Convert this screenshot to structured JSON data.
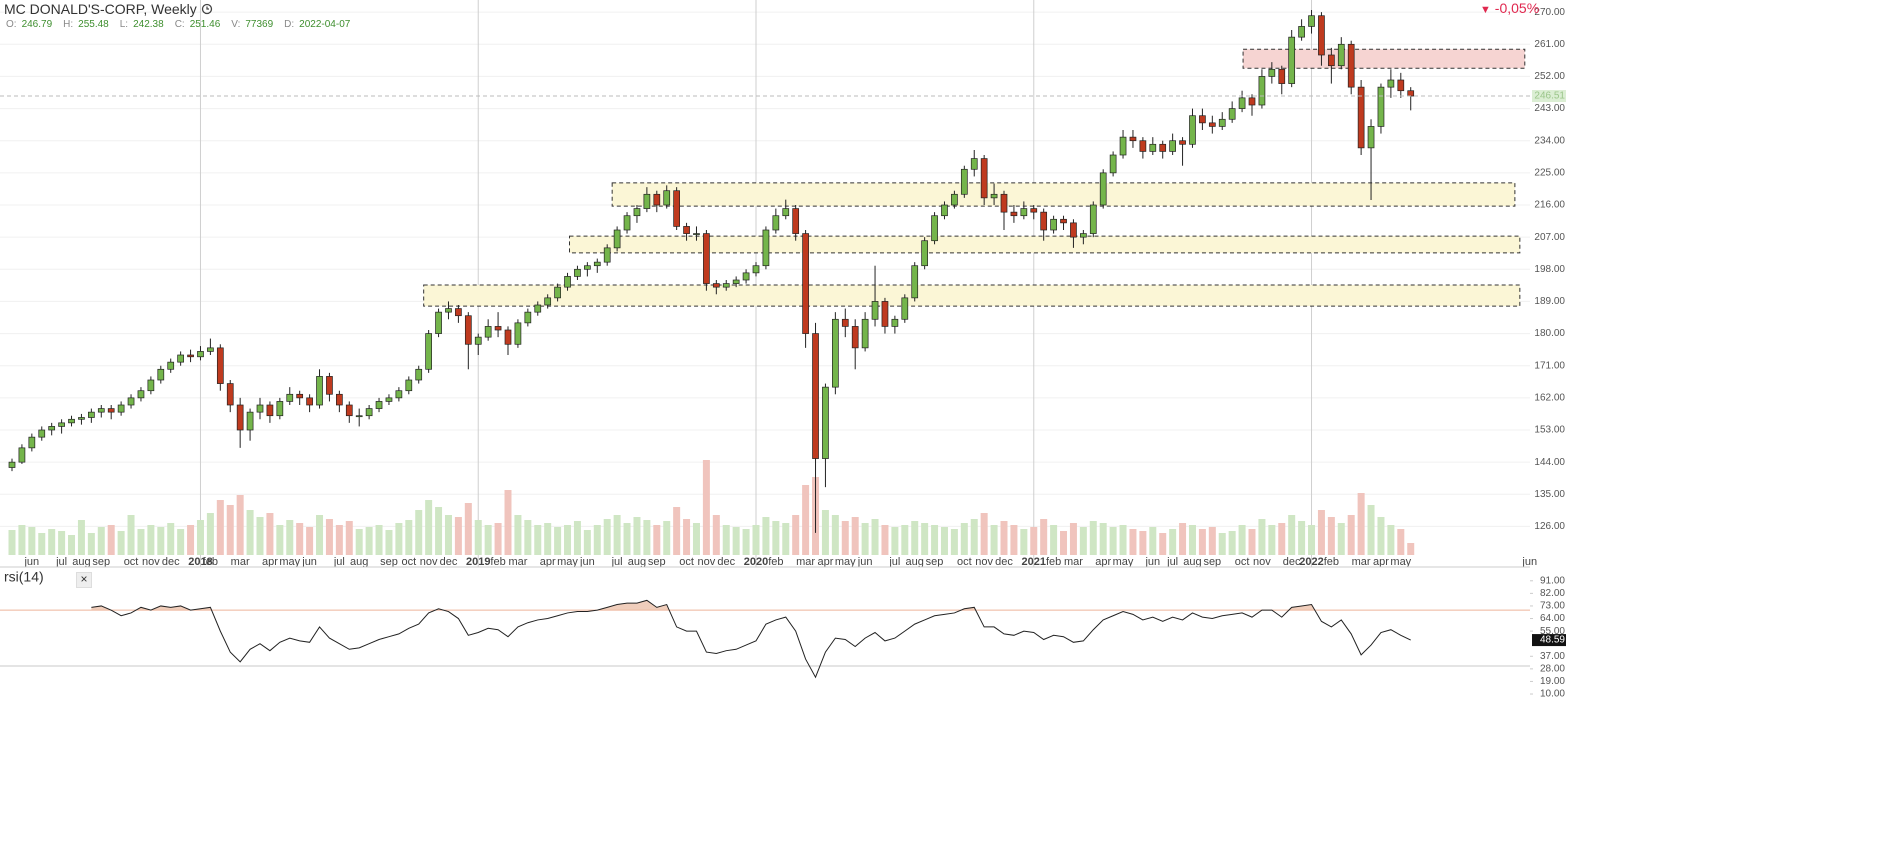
{
  "header": {
    "title": "MC DONALD'S-CORP, Weekly",
    "change": "-0,05%",
    "fields": [
      {
        "key": "O:",
        "value": 246.79
      },
      {
        "key": "H:",
        "value": 255.48
      },
      {
        "key": "L:",
        "value": 242.38
      },
      {
        "key": "C:",
        "value": 251.46
      },
      {
        "key": "V:",
        "value": 77369
      },
      {
        "key": "D:",
        "value": "2022-04-07"
      }
    ]
  },
  "chart_data": {
    "type": "candlestick",
    "up_color": "#74b54b",
    "down_color": "#bf3a1f",
    "volume_up_color": "#cfe6c4",
    "volume_down_color": "#f0c4bd",
    "ylim": [
      118,
      273.4
    ],
    "yticks": [
      {
        "value": 126,
        "label": "126.00"
      },
      {
        "value": 135,
        "label": "135.00"
      },
      {
        "value": 144,
        "label": "144.00"
      },
      {
        "value": 153,
        "label": "153.00"
      },
      {
        "value": 162,
        "label": "162.00"
      },
      {
        "value": 171,
        "label": "171.00"
      },
      {
        "value": 180,
        "label": "180.00"
      },
      {
        "value": 189,
        "label": "189.00"
      },
      {
        "value": 198,
        "label": "198.00"
      },
      {
        "value": 207,
        "label": "207.00"
      },
      {
        "value": 216,
        "label": "216.00"
      },
      {
        "value": 225,
        "label": "225.00"
      },
      {
        "value": 234,
        "label": "234.00"
      },
      {
        "value": 243,
        "label": "243.00"
      },
      {
        "value": 252,
        "label": "252.00"
      },
      {
        "value": 261,
        "label": "261.00"
      },
      {
        "value": 270,
        "label": "270.00"
      }
    ],
    "grid": true,
    "categories": [
      null,
      null,
      "jun",
      null,
      null,
      "jul",
      null,
      "aug",
      null,
      "sep",
      null,
      null,
      "oct",
      null,
      "nov",
      null,
      "dec",
      null,
      null,
      "2018",
      "feb",
      null,
      null,
      "mar",
      null,
      null,
      "apr",
      null,
      "may",
      null,
      "jun",
      null,
      null,
      "jul",
      null,
      "aug",
      null,
      null,
      "sep",
      null,
      "oct",
      null,
      "nov",
      null,
      "dec",
      null,
      null,
      "2019",
      null,
      "feb",
      null,
      "mar",
      null,
      null,
      "apr",
      null,
      "may",
      null,
      "jun",
      null,
      null,
      "jul",
      null,
      "aug",
      null,
      "sep",
      null,
      null,
      "oct",
      null,
      "nov",
      null,
      "dec",
      null,
      null,
      "2020",
      null,
      "feb",
      null,
      null,
      "mar",
      null,
      "apr",
      null,
      "may",
      null,
      "jun",
      null,
      null,
      "jul",
      null,
      "aug",
      null,
      "sep",
      null,
      null,
      "oct",
      null,
      "nov",
      null,
      "dec",
      null,
      null,
      "2021",
      null,
      "feb",
      null,
      "mar",
      null,
      null,
      "apr",
      null,
      "may",
      null,
      null,
      "jun",
      null,
      "jul",
      null,
      "aug",
      null,
      "sep",
      null,
      null,
      "oct",
      null,
      "nov",
      null,
      null,
      "dec",
      null,
      "2022",
      null,
      "feb",
      null,
      null,
      "mar",
      null,
      "apr",
      null,
      "may",
      null,
      null,
      null,
      null,
      null,
      null,
      null,
      null,
      null,
      null,
      null,
      null,
      "jun"
    ],
    "ohlc": [
      [
        142.5,
        145,
        141.5,
        144
      ],
      [
        144,
        149,
        143.5,
        148
      ],
      [
        148,
        152,
        147,
        151
      ],
      [
        151,
        154,
        150,
        153
      ],
      [
        153,
        155,
        151.5,
        154
      ],
      [
        154,
        156,
        152,
        155
      ],
      [
        155,
        157,
        154,
        156
      ],
      [
        156,
        157.5,
        154.5,
        156.5
      ],
      [
        156.5,
        159,
        155,
        158
      ],
      [
        158,
        160,
        156.5,
        159
      ],
      [
        159,
        160,
        156,
        158
      ],
      [
        158,
        161,
        157,
        160
      ],
      [
        160,
        163,
        159,
        162
      ],
      [
        162,
        165,
        161,
        164
      ],
      [
        164,
        168,
        163,
        167
      ],
      [
        167,
        171,
        166,
        170
      ],
      [
        170,
        173,
        169,
        172
      ],
      [
        172,
        175,
        171,
        174
      ],
      [
        174,
        175.5,
        172,
        173.5
      ],
      [
        173.5,
        176.5,
        172.5,
        175
      ],
      [
        175,
        178.6,
        174,
        176
      ],
      [
        176,
        177,
        164,
        166
      ],
      [
        166,
        167,
        158,
        160
      ],
      [
        160,
        162,
        148,
        153
      ],
      [
        153,
        159,
        150,
        158
      ],
      [
        158,
        162,
        156,
        160
      ],
      [
        160,
        161,
        155,
        157
      ],
      [
        157,
        162,
        156,
        161
      ],
      [
        161,
        165,
        160,
        163
      ],
      [
        163,
        164,
        160,
        162
      ],
      [
        162,
        163,
        158,
        160
      ],
      [
        160,
        170,
        159,
        168
      ],
      [
        168,
        169,
        161,
        163
      ],
      [
        163,
        164,
        158,
        160
      ],
      [
        160,
        161,
        155,
        157
      ],
      [
        157,
        159,
        154,
        157
      ],
      [
        157,
        160,
        156,
        159
      ],
      [
        159,
        162,
        158,
        161
      ],
      [
        161,
        163,
        160,
        162
      ],
      [
        162,
        165,
        161,
        164
      ],
      [
        164,
        168,
        163,
        167
      ],
      [
        167,
        171,
        166,
        170
      ],
      [
        170,
        181,
        169,
        180
      ],
      [
        180,
        187,
        179,
        186
      ],
      [
        186,
        189,
        184,
        187
      ],
      [
        187,
        188,
        183,
        185
      ],
      [
        185,
        186,
        170,
        177
      ],
      [
        177,
        180,
        174,
        179
      ],
      [
        179,
        184,
        178,
        182
      ],
      [
        182,
        186,
        179,
        181
      ],
      [
        181,
        182,
        174,
        177
      ],
      [
        177,
        184,
        176,
        183
      ],
      [
        183,
        187,
        182,
        186
      ],
      [
        186,
        189,
        185,
        188
      ],
      [
        188,
        191,
        187,
        190
      ],
      [
        190,
        194,
        189,
        193
      ],
      [
        193,
        197,
        192,
        196
      ],
      [
        196,
        199,
        195,
        198
      ],
      [
        198,
        200,
        196,
        199
      ],
      [
        199,
        201,
        197,
        200
      ],
      [
        200,
        205,
        199,
        204
      ],
      [
        204,
        210,
        203,
        209
      ],
      [
        209,
        214,
        208,
        213
      ],
      [
        213,
        216,
        211,
        215
      ],
      [
        215,
        221,
        214,
        219
      ],
      [
        219,
        220,
        214,
        216
      ],
      [
        216,
        221.5,
        215,
        220
      ],
      [
        220,
        221,
        209,
        210
      ],
      [
        210,
        211,
        206,
        208
      ],
      [
        208,
        210,
        206,
        208
      ],
      [
        208,
        209,
        192,
        194
      ],
      [
        194,
        195,
        191,
        193
      ],
      [
        193,
        195,
        192,
        194
      ],
      [
        194,
        196,
        193,
        195
      ],
      [
        195,
        198,
        194,
        197
      ],
      [
        197,
        200,
        196,
        199
      ],
      [
        199,
        210,
        198,
        209
      ],
      [
        209,
        215,
        208,
        213
      ],
      [
        213,
        217.5,
        212,
        215
      ],
      [
        215,
        216,
        206,
        208
      ],
      [
        208,
        209,
        176,
        180
      ],
      [
        180,
        183,
        124.2,
        145
      ],
      [
        145,
        166,
        137,
        165
      ],
      [
        165,
        186,
        163,
        184
      ],
      [
        184,
        187,
        179,
        182
      ],
      [
        182,
        184,
        170,
        176
      ],
      [
        176,
        186,
        175,
        184
      ],
      [
        184,
        199,
        182,
        189
      ],
      [
        189,
        190,
        180,
        182
      ],
      [
        182,
        185,
        180,
        184
      ],
      [
        184,
        191,
        183,
        190
      ],
      [
        190,
        200,
        189,
        199
      ],
      [
        199,
        207,
        198,
        206
      ],
      [
        206,
        214,
        205,
        213
      ],
      [
        213,
        217,
        212,
        216
      ],
      [
        216,
        220,
        215,
        219
      ],
      [
        219,
        227,
        218,
        226
      ],
      [
        226,
        231.4,
        224,
        229
      ],
      [
        229,
        230,
        216,
        218
      ],
      [
        218,
        222,
        216,
        219
      ],
      [
        219,
        220,
        209,
        214
      ],
      [
        214,
        216,
        211,
        213
      ],
      [
        213,
        217,
        212,
        215
      ],
      [
        215,
        216,
        212,
        214
      ],
      [
        214,
        215,
        206,
        209
      ],
      [
        209,
        213,
        208,
        212
      ],
      [
        212,
        213,
        209,
        211
      ],
      [
        211,
        212,
        204,
        207
      ],
      [
        207,
        209,
        205,
        208
      ],
      [
        208,
        217,
        207,
        216
      ],
      [
        216,
        226,
        215,
        225
      ],
      [
        225,
        231,
        224,
        230
      ],
      [
        230,
        237,
        229,
        235
      ],
      [
        235,
        237,
        232,
        234
      ],
      [
        234,
        235,
        229,
        231
      ],
      [
        231,
        235,
        230,
        233
      ],
      [
        233,
        234,
        229,
        231
      ],
      [
        231,
        236,
        230,
        234
      ],
      [
        234,
        235,
        227,
        233
      ],
      [
        233,
        243,
        232,
        241
      ],
      [
        241,
        243,
        237,
        239
      ],
      [
        239,
        241,
        236,
        238
      ],
      [
        238,
        242,
        237,
        240
      ],
      [
        240,
        245,
        239,
        243
      ],
      [
        243,
        248,
        242,
        246
      ],
      [
        246,
        247,
        241,
        244
      ],
      [
        244,
        254,
        243,
        252
      ],
      [
        252,
        256,
        250,
        254
      ],
      [
        254,
        255,
        247,
        250
      ],
      [
        250,
        265,
        249,
        263
      ],
      [
        263,
        268,
        262,
        266
      ],
      [
        266,
        270.6,
        264,
        269
      ],
      [
        269,
        270,
        255,
        258
      ],
      [
        258,
        260,
        250,
        255
      ],
      [
        255,
        263,
        254,
        261
      ],
      [
        261,
        262,
        247,
        249
      ],
      [
        249,
        251,
        230,
        232
      ],
      [
        232,
        240,
        217.4,
        238
      ],
      [
        238,
        250,
        236,
        249
      ],
      [
        249,
        254,
        246,
        251
      ],
      [
        251,
        253,
        246,
        248
      ],
      [
        248,
        249,
        242.5,
        246.51
      ],
      null,
      null,
      null,
      null,
      null,
      null,
      null,
      null,
      null,
      null,
      null,
      null
    ],
    "volume_lim": [
      0,
      100
    ],
    "volume": [
      25,
      30,
      28,
      22,
      26,
      24,
      20,
      35,
      22,
      28,
      30,
      24,
      40,
      26,
      30,
      28,
      32,
      26,
      30,
      35,
      42,
      55,
      50,
      60,
      45,
      38,
      42,
      30,
      35,
      32,
      28,
      40,
      36,
      30,
      34,
      26,
      28,
      30,
      25,
      32,
      35,
      45,
      55,
      48,
      40,
      38,
      52,
      35,
      30,
      32,
      65,
      40,
      35,
      30,
      32,
      28,
      30,
      34,
      25,
      30,
      36,
      40,
      32,
      38,
      35,
      30,
      34,
      48,
      36,
      32,
      95,
      40,
      30,
      28,
      26,
      30,
      38,
      34,
      32,
      40,
      70,
      78,
      45,
      40,
      34,
      38,
      32,
      36,
      30,
      28,
      30,
      34,
      32,
      30,
      28,
      26,
      32,
      36,
      42,
      30,
      34,
      30,
      26,
      28,
      36,
      30,
      24,
      32,
      28,
      34,
      32,
      28,
      30,
      26,
      24,
      28,
      22,
      26,
      32,
      30,
      26,
      28,
      22,
      24,
      30,
      26,
      36,
      30,
      32,
      40,
      34,
      30,
      45,
      38,
      32,
      40,
      62,
      50,
      38,
      30,
      26,
      12,
      null,
      null,
      null,
      null,
      null,
      null,
      null,
      null,
      null,
      null,
      null,
      null
    ],
    "zones": [
      {
        "color": "#f6d4d2",
        "from": 124.1,
        "to": 152.5,
        "low": 254.3,
        "high": 259.6
      },
      {
        "color": "#fbf6d6",
        "from": 60.5,
        "to": 151.5,
        "low": 215.7,
        "high": 222.2
      },
      {
        "color": "#fbf6d6",
        "from": 56.2,
        "to": 152,
        "low": 202.6,
        "high": 207.3
      },
      {
        "color": "#fbf6d6",
        "from": 41.5,
        "to": 152,
        "low": 187.7,
        "high": 193.6
      }
    ],
    "rsi_title": "rsi(14)",
    "rsi_lim": [
      0,
      98
    ],
    "rsi_ticks": [
      {
        "value": 10,
        "label": "10.00"
      },
      {
        "value": 19,
        "label": "19.00"
      },
      {
        "value": 28,
        "label": "28.00"
      },
      {
        "value": 37,
        "label": "37.00"
      },
      {
        "value": 55,
        "label": "55.00"
      },
      {
        "value": 64,
        "label": "64.00"
      },
      {
        "value": 73,
        "label": "73.00"
      },
      {
        "value": 82,
        "label": "82.00"
      },
      {
        "value": 91,
        "label": "91.00"
      }
    ],
    "rsi_levels": [
      70,
      30
    ],
    "rsi": [
      null,
      null,
      null,
      null,
      null,
      null,
      null,
      null,
      72,
      73,
      70,
      66,
      68,
      72,
      70,
      73,
      72,
      73,
      70,
      71,
      72,
      55,
      40,
      33,
      42,
      46,
      41,
      47,
      50,
      48,
      47,
      58,
      50,
      46,
      42,
      43,
      46,
      49,
      51,
      53,
      57,
      60,
      68,
      71,
      69,
      64,
      52,
      54,
      57,
      56,
      51,
      58,
      61,
      63,
      64,
      66,
      68,
      69,
      69,
      70,
      72,
      74,
      75,
      75,
      77,
      72,
      74,
      58,
      55,
      55,
      40,
      39,
      41,
      42,
      45,
      48,
      60,
      63,
      65,
      55,
      35,
      22,
      40,
      50,
      49,
      44,
      50,
      54,
      48,
      50,
      55,
      60,
      63,
      66,
      67,
      68,
      71,
      72,
      58,
      58,
      53,
      52,
      55,
      54,
      49,
      52,
      51,
      47,
      48,
      56,
      63,
      66,
      69,
      67,
      63,
      65,
      62,
      65,
      63,
      68,
      65,
      64,
      66,
      67,
      68,
      65,
      70,
      70,
      65,
      72,
      73,
      74,
      62,
      58,
      63,
      53,
      38,
      45,
      54,
      56,
      52,
      48.59,
      null,
      null,
      null,
      null,
      null,
      null,
      null,
      null,
      null,
      null,
      null,
      null
    ]
  }
}
